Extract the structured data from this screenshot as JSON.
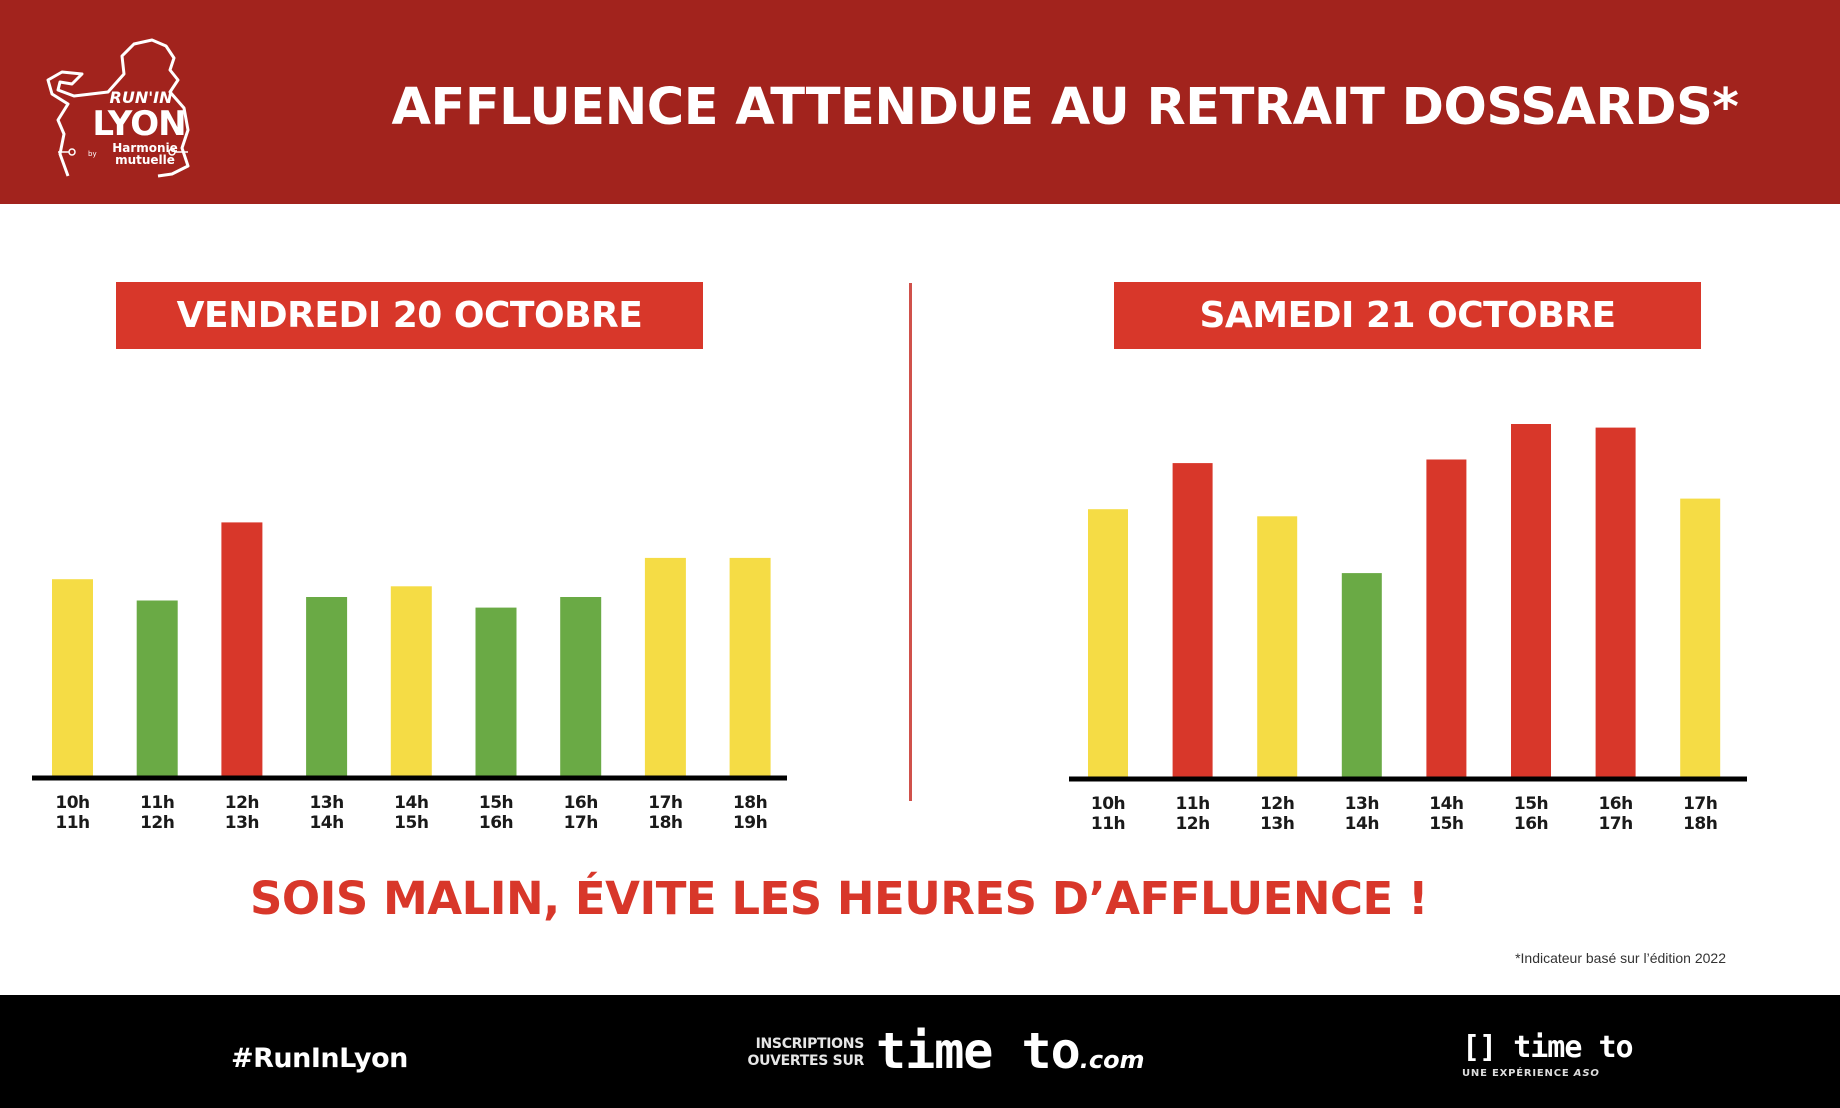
{
  "header": {
    "title": "AFFLUENCE ATTENDUE AU RETRAIT DOSSARDS*",
    "logo": {
      "line1": "RUN'IN",
      "line2": "LYON",
      "by": "by",
      "sponsor_line1": "Harmonie",
      "sponsor_line2": "mutuelle"
    }
  },
  "colors": {
    "header_bg": "#a2231d",
    "accent_red": "#d8372a",
    "low": "#6aaa45",
    "medium": "#f5dc45",
    "high": "#d8372a",
    "axis": "#000000",
    "footer_bg": "#000000"
  },
  "chart_data": [
    {
      "type": "bar",
      "title": "VENDREDI 20 OCTOBRE",
      "xlabel": "",
      "ylabel": "",
      "categories": [
        "10h 11h",
        "11h 12h",
        "12h 13h",
        "13h 14h",
        "14h 15h",
        "15h 16h",
        "16h 17h",
        "17h 18h",
        "18h 19h"
      ],
      "tick_labels": [
        [
          "10h",
          "11h"
        ],
        [
          "11h",
          "12h"
        ],
        [
          "12h",
          "13h"
        ],
        [
          "13h",
          "14h"
        ],
        [
          "14h",
          "15h"
        ],
        [
          "15h",
          "16h"
        ],
        [
          "16h",
          "17h"
        ],
        [
          "17h",
          "18h"
        ],
        [
          "18h",
          "19h"
        ]
      ],
      "values": [
        56,
        50,
        72,
        51,
        54,
        48,
        51,
        62,
        62
      ],
      "levels": [
        "medium",
        "low",
        "high",
        "low",
        "medium",
        "low",
        "low",
        "medium",
        "medium"
      ],
      "ylim": [
        0,
        100
      ],
      "grid": false,
      "legend": "none"
    },
    {
      "type": "bar",
      "title": "SAMEDI 21 OCTOBRE",
      "xlabel": "",
      "ylabel": "",
      "categories": [
        "10h 11h",
        "11h 12h",
        "12h 13h",
        "13h 14h",
        "14h 15h",
        "15h 16h",
        "16h 17h",
        "17h 18h"
      ],
      "tick_labels": [
        [
          "10h",
          "11h"
        ],
        [
          "11h",
          "12h"
        ],
        [
          "12h",
          "13h"
        ],
        [
          "13h",
          "14h"
        ],
        [
          "14h",
          "15h"
        ],
        [
          "15h",
          "16h"
        ],
        [
          "16h",
          "17h"
        ],
        [
          "17h",
          "18h"
        ]
      ],
      "values": [
        76,
        89,
        74,
        58,
        90,
        100,
        99,
        79
      ],
      "levels": [
        "medium",
        "high",
        "medium",
        "low",
        "high",
        "high",
        "high",
        "medium"
      ],
      "ylim": [
        0,
        100
      ],
      "grid": false,
      "legend": "none"
    }
  ],
  "slogan": "SOIS MALIN, ÉVITE LES HEURES D’AFFLUENCE !",
  "footnote": "*Indicateur basé sur l’édition 2022",
  "footer": {
    "hashtag": "#RunInLyon",
    "inscriptions_line1": "INSCRIPTIONS",
    "inscriptions_line2": "OUVERTES SUR",
    "site_name": "time to",
    "site_tld": ".com",
    "brand_name": "time to",
    "brand_tagline": "UNE EXPÉRIENCE",
    "brand_tagline_org": "ASO"
  }
}
